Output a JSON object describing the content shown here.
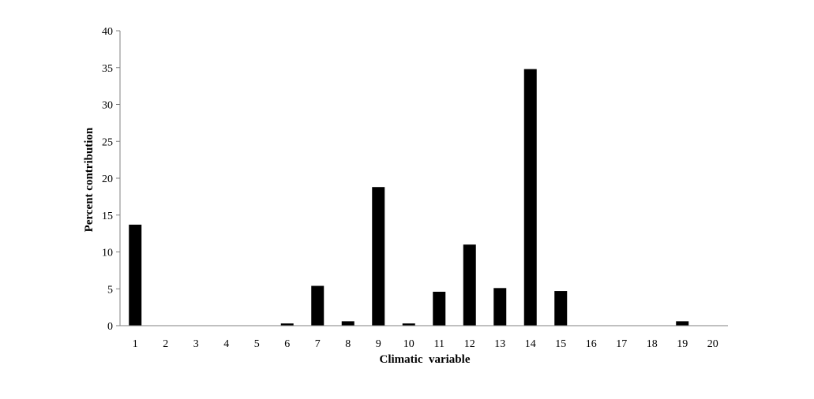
{
  "chart_data": {
    "type": "bar",
    "xlabel": "Climatic  variable",
    "ylabel": "Percent contribution",
    "categories": [
      "1",
      "2",
      "3",
      "4",
      "5",
      "6",
      "7",
      "8",
      "9",
      "10",
      "11",
      "12",
      "13",
      "14",
      "15",
      "16",
      "17",
      "18",
      "19",
      "20"
    ],
    "values": [
      13.7,
      0,
      0,
      0,
      0,
      0.3,
      5.4,
      0.6,
      18.8,
      0.3,
      4.6,
      11.0,
      5.1,
      34.8,
      4.7,
      0,
      0,
      0,
      0.6,
      0
    ],
    "ylim": [
      0,
      40
    ],
    "yticks": [
      0,
      5,
      10,
      15,
      20,
      25,
      30,
      35,
      40
    ],
    "grid": false,
    "legend": "none",
    "bar_color": "#000000",
    "axis_color": "#808080"
  }
}
